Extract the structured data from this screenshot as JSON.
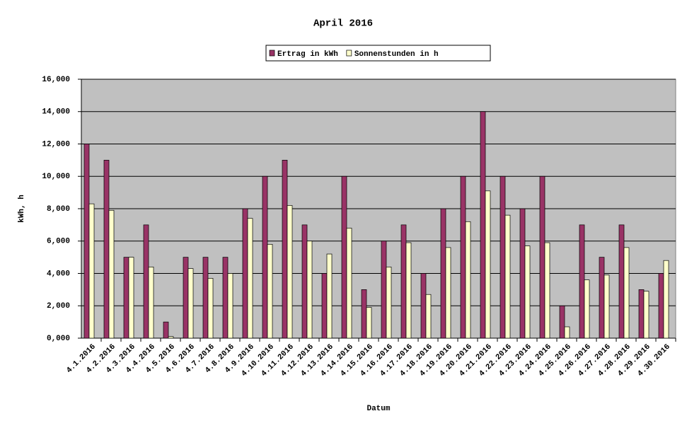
{
  "chart_data": {
    "type": "bar",
    "title": "April 2016",
    "x_label": "Datum",
    "y_label": "kWh, h",
    "categories": [
      "4.1.2016",
      "4.2.2016",
      "4.3.2016",
      "4.4.2016",
      "4.5.2016",
      "4.6.2016",
      "4.7.2016",
      "4.8.2016",
      "4.9.2016",
      "4.10.2016",
      "4.11.2016",
      "4.12.2016",
      "4.13.2016",
      "4.14.2016",
      "4.15.2016",
      "4.16.2016",
      "4.17.2016",
      "4.18.2016",
      "4.19.2016",
      "4.20.2016",
      "4.21.2016",
      "4.22.2016",
      "4.23.2016",
      "4.24.2016",
      "4.25.2016",
      "4.26.2016",
      "4.27.2016",
      "4.28.2016",
      "4.29.2016",
      "4.30.2016"
    ],
    "series": [
      {
        "name": "Ertrag in kWh",
        "color": "#993366",
        "values": [
          12,
          11,
          5,
          7,
          1,
          5,
          5,
          5,
          8,
          10,
          11,
          7,
          4,
          10,
          3,
          6,
          7,
          4,
          8,
          10,
          14,
          10,
          8,
          10,
          2,
          7,
          5,
          7,
          3,
          4
        ]
      },
      {
        "name": "Sonnenstunden in h",
        "color": "#ffffcc",
        "values": [
          8.3,
          7.9,
          5.0,
          4.4,
          0.1,
          4.3,
          3.7,
          4.0,
          7.4,
          5.8,
          8.2,
          6.0,
          5.2,
          6.8,
          1.9,
          4.4,
          5.9,
          2.7,
          5.6,
          7.2,
          9.1,
          7.6,
          5.7,
          5.9,
          0.7,
          3.6,
          3.9,
          5.6,
          2.9,
          4.8
        ]
      }
    ],
    "ylim": [
      0,
      16
    ],
    "yticks": [
      {
        "value": 0,
        "label": "0,000"
      },
      {
        "value": 2,
        "label": "2,000"
      },
      {
        "value": 4,
        "label": "4,000"
      },
      {
        "value": 6,
        "label": "6,000"
      },
      {
        "value": 8,
        "label": "8,000"
      },
      {
        "value": 10,
        "label": "10,000"
      },
      {
        "value": 12,
        "label": "12,000"
      },
      {
        "value": 14,
        "label": "14,000"
      },
      {
        "value": 16,
        "label": "16,000"
      }
    ],
    "grid": true,
    "legend": "top",
    "plot_background": "#c0c0c0"
  }
}
